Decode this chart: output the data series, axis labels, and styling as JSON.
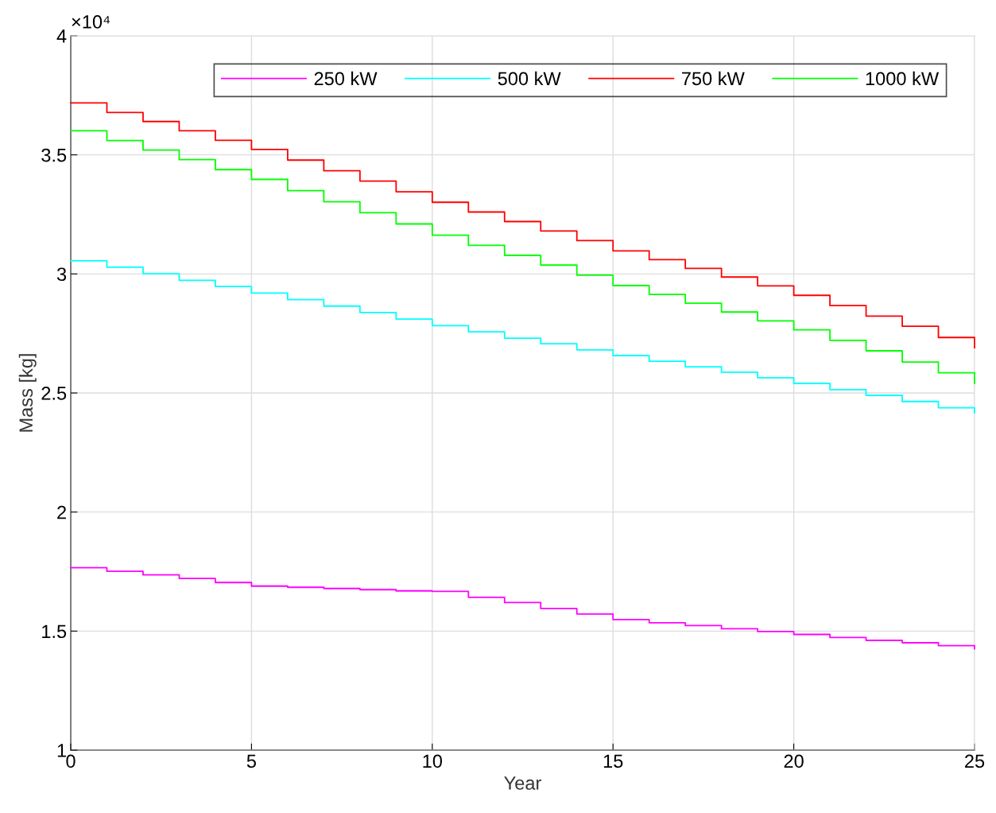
{
  "chart_data": {
    "type": "step",
    "xlabel": "Year",
    "ylabel": "Mass [kg]",
    "annotations": [
      "×10⁴"
    ],
    "x": [
      0,
      1,
      2,
      3,
      4,
      5,
      6,
      7,
      8,
      9,
      10,
      11,
      12,
      13,
      14,
      15,
      16,
      17,
      18,
      19,
      20,
      21,
      22,
      23,
      24,
      25
    ],
    "series": [
      {
        "name": "250 kW",
        "color": "#ff00ff",
        "values": [
          1.766,
          1.751,
          1.736,
          1.721,
          1.704,
          1.689,
          1.684,
          1.679,
          1.674,
          1.669,
          1.667,
          1.642,
          1.62,
          1.595,
          1.572,
          1.548,
          1.535,
          1.523,
          1.51,
          1.498,
          1.486,
          1.473,
          1.461,
          1.451,
          1.439,
          1.426
        ]
      },
      {
        "name": "500 kW",
        "color": "#00ffff",
        "values": [
          3.055,
          3.028,
          3.001,
          2.973,
          2.947,
          2.92,
          2.892,
          2.865,
          2.838,
          2.81,
          2.783,
          2.757,
          2.73,
          2.707,
          2.681,
          2.657,
          2.633,
          2.61,
          2.587,
          2.564,
          2.54,
          2.514,
          2.49,
          2.464,
          2.438,
          2.417
        ]
      },
      {
        "name": "750 kW",
        "color": "#ff0000",
        "values": [
          3.718,
          3.678,
          3.64,
          3.601,
          3.561,
          3.523,
          3.478,
          3.433,
          3.39,
          3.345,
          3.301,
          3.26,
          3.22,
          3.18,
          3.14,
          3.097,
          3.06,
          3.023,
          2.987,
          2.95,
          2.91,
          2.867,
          2.823,
          2.78,
          2.733,
          2.69
        ]
      },
      {
        "name": "1000 kW",
        "color": "#00ff00",
        "values": [
          3.601,
          3.56,
          3.52,
          3.48,
          3.438,
          3.397,
          3.35,
          3.303,
          3.257,
          3.21,
          3.163,
          3.12,
          3.078,
          3.037,
          2.995,
          2.951,
          2.914,
          2.877,
          2.84,
          2.803,
          2.765,
          2.721,
          2.677,
          2.63,
          2.585,
          2.541
        ]
      }
    ],
    "xlim": [
      0,
      25
    ],
    "xticks": [
      0,
      5,
      10,
      15,
      20,
      25
    ],
    "ylim": [
      1,
      4
    ],
    "yticks": [
      1,
      1.5,
      2,
      2.5,
      3,
      3.5,
      4
    ],
    "grid": true,
    "legend": "top"
  }
}
